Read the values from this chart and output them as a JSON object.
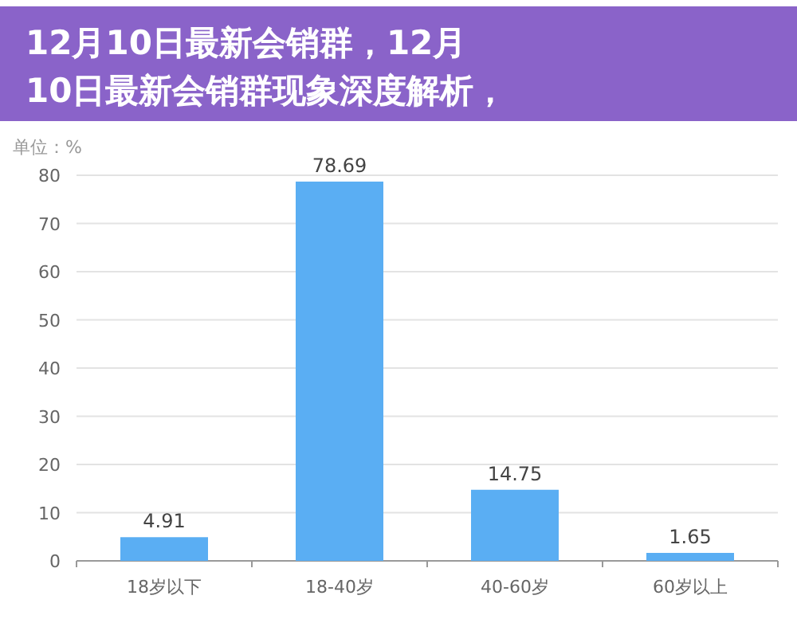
{
  "chart_data": {
    "type": "bar",
    "title": "12月10日最新会销群，12月10日最新会销群现象深度解析，",
    "ylabel": "单位：%",
    "categories": [
      "18岁以下",
      "18-40岁",
      "40-60岁",
      "60岁以上"
    ],
    "values": [
      4.91,
      78.69,
      14.75,
      1.65
    ],
    "color": "#5aaef3",
    "ylim": [
      0,
      80
    ],
    "yticks": [
      0,
      10,
      20,
      30,
      40,
      50,
      60,
      70,
      80
    ],
    "grid": "y",
    "data_labels": true
  }
}
